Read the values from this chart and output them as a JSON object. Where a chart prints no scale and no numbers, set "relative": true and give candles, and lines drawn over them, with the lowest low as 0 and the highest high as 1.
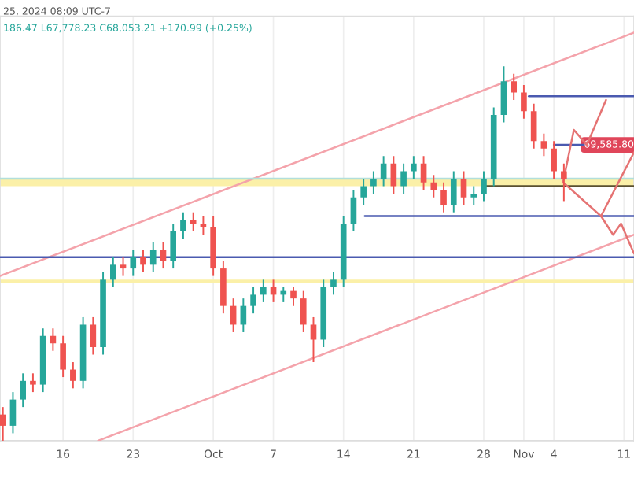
{
  "chart_data": {
    "type": "candlestick",
    "relative": true,
    "x": [
      "2024-09-10",
      "2024-09-11",
      "2024-09-12",
      "2024-09-13",
      "2024-09-14",
      "2024-09-15",
      "2024-09-16",
      "2024-09-17",
      "2024-09-18",
      "2024-09-19",
      "2024-09-20",
      "2024-09-21",
      "2024-09-22",
      "2024-09-23",
      "2024-09-24",
      "2024-09-25",
      "2024-09-26",
      "2024-09-27",
      "2024-09-28",
      "2024-09-29",
      "2024-09-30",
      "2024-10-01",
      "2024-10-02",
      "2024-10-03",
      "2024-10-04",
      "2024-10-05",
      "2024-10-06",
      "2024-10-07",
      "2024-10-08",
      "2024-10-09",
      "2024-10-10",
      "2024-10-11",
      "2024-10-12",
      "2024-10-13",
      "2024-10-14",
      "2024-10-15",
      "2024-10-16",
      "2024-10-17",
      "2024-10-18",
      "2024-10-19",
      "2024-10-20",
      "2024-10-21",
      "2024-10-22",
      "2024-10-23",
      "2024-10-24",
      "2024-10-25",
      "2024-10-26",
      "2024-10-27",
      "2024-10-28",
      "2024-10-29",
      "2024-10-30",
      "2024-10-31",
      "2024-11-01",
      "2024-11-02",
      "2024-11-03",
      "2024-11-04",
      "2024-11-05"
    ],
    "ohlc": [
      [
        0.07,
        0.09,
        0,
        0.04
      ],
      [
        0.04,
        0.13,
        0.02,
        0.11
      ],
      [
        0.11,
        0.18,
        0.09,
        0.16
      ],
      [
        0.16,
        0.18,
        0.13,
        0.15
      ],
      [
        0.15,
        0.3,
        0.13,
        0.28
      ],
      [
        0.28,
        0.3,
        0.24,
        0.26
      ],
      [
        0.26,
        0.28,
        0.17,
        0.19
      ],
      [
        0.19,
        0.21,
        0.14,
        0.16
      ],
      [
        0.16,
        0.33,
        0.14,
        0.31
      ],
      [
        0.31,
        0.33,
        0.23,
        0.25
      ],
      [
        0.25,
        0.45,
        0.23,
        0.43
      ],
      [
        0.43,
        0.49,
        0.41,
        0.47
      ],
      [
        0.47,
        0.49,
        0.44,
        0.46
      ],
      [
        0.46,
        0.51,
        0.44,
        0.49
      ],
      [
        0.49,
        0.51,
        0.45,
        0.47
      ],
      [
        0.47,
        0.53,
        0.45,
        0.51
      ],
      [
        0.51,
        0.53,
        0.46,
        0.48
      ],
      [
        0.48,
        0.58,
        0.46,
        0.56
      ],
      [
        0.56,
        0.61,
        0.54,
        0.59
      ],
      [
        0.59,
        0.61,
        0.56,
        0.58
      ],
      [
        0.58,
        0.6,
        0.55,
        0.57
      ],
      [
        0.57,
        0.6,
        0.44,
        0.46
      ],
      [
        0.46,
        0.48,
        0.34,
        0.36
      ],
      [
        0.36,
        0.38,
        0.29,
        0.31
      ],
      [
        0.31,
        0.38,
        0.29,
        0.36
      ],
      [
        0.36,
        0.41,
        0.34,
        0.39
      ],
      [
        0.39,
        0.43,
        0.37,
        0.41
      ],
      [
        0.41,
        0.43,
        0.37,
        0.39
      ],
      [
        0.39,
        0.41,
        0.37,
        0.4
      ],
      [
        0.4,
        0.41,
        0.36,
        0.38
      ],
      [
        0.38,
        0.4,
        0.29,
        0.31
      ],
      [
        0.31,
        0.33,
        0.21,
        0.27
      ],
      [
        0.27,
        0.43,
        0.25,
        0.41
      ],
      [
        0.41,
        0.45,
        0.39,
        0.43
      ],
      [
        0.43,
        0.6,
        0.41,
        0.58
      ],
      [
        0.58,
        0.67,
        0.56,
        0.65
      ],
      [
        0.65,
        0.7,
        0.63,
        0.68
      ],
      [
        0.68,
        0.72,
        0.66,
        0.7
      ],
      [
        0.7,
        0.76,
        0.68,
        0.74
      ],
      [
        0.74,
        0.76,
        0.66,
        0.68
      ],
      [
        0.68,
        0.74,
        0.66,
        0.72
      ],
      [
        0.72,
        0.76,
        0.7,
        0.74
      ],
      [
        0.74,
        0.76,
        0.67,
        0.69
      ],
      [
        0.69,
        0.71,
        0.65,
        0.67
      ],
      [
        0.67,
        0.69,
        0.61,
        0.63
      ],
      [
        0.63,
        0.72,
        0.61,
        0.7
      ],
      [
        0.7,
        0.72,
        0.63,
        0.65
      ],
      [
        0.65,
        0.68,
        0.63,
        0.66
      ],
      [
        0.66,
        0.72,
        0.64,
        0.7
      ],
      [
        0.7,
        0.89,
        0.68,
        0.87
      ],
      [
        0.87,
        1.0,
        0.85,
        0.96
      ],
      [
        0.96,
        0.98,
        0.91,
        0.93
      ],
      [
        0.93,
        0.95,
        0.86,
        0.88
      ],
      [
        0.88,
        0.9,
        0.78,
        0.8
      ],
      [
        0.8,
        0.82,
        0.76,
        0.78
      ],
      [
        0.78,
        0.8,
        0.7,
        0.72
      ],
      [
        0.72,
        0.74,
        0.64,
        0.7
      ]
    ],
    "series": [
      {
        "type": "line",
        "color": "#f4a3ab",
        "x": [
          "2024-09-09T17:00",
          "2024-11-12T00:00"
        ],
        "values": [
          0.44,
          1.09
        ]
      },
      {
        "type": "line",
        "color": "#f4a3ab",
        "x": [
          "2024-09-19T12:00",
          "2024-11-12T00:00"
        ],
        "values": [
          0,
          0.55
        ]
      },
      {
        "type": "line",
        "color": "#b2dfdb",
        "x": [
          "2024-09-09T17:00",
          "2024-11-12T00:00"
        ],
        "values": [
          0.7,
          0.7
        ]
      },
      {
        "type": "line",
        "color": "#4a5ab0",
        "x": [
          "2024-11-01T12:00",
          "2024-11-12T00:00"
        ],
        "values": [
          0.92,
          0.92
        ]
      },
      {
        "type": "line",
        "color": "#4a5ab0",
        "x": [
          "2024-11-04T00:00",
          "2024-11-07T00:00"
        ],
        "values": [
          0.79,
          0.79
        ]
      },
      {
        "type": "line",
        "color": "#5a5030",
        "x": [
          "2024-10-27T22:00",
          "2024-11-12T00:00"
        ],
        "values": [
          0.68,
          0.68
        ]
      },
      {
        "type": "line",
        "color": "#4a5ab0",
        "x": [
          "2024-10-16T03:00",
          "2024-11-12T00:00"
        ],
        "values": [
          0.6,
          0.6
        ]
      },
      {
        "type": "line",
        "color": "#4a5ab0",
        "x": [
          "2024-09-09T17:00",
          "2024-11-12T00:00"
        ],
        "values": [
          0.49,
          0.49
        ]
      },
      {
        "type": "line",
        "color": "#e57373",
        "x": [
          "2024-11-04T22:00",
          "2024-11-06T00:00",
          "2024-11-07T07:00",
          "2024-11-09T05:00"
        ],
        "values": [
          0.69,
          0.83,
          0.79,
          0.91
        ]
      },
      {
        "type": "line",
        "color": "#e57373",
        "x": [
          "2024-11-04T22:00",
          "2024-11-08T17:00",
          "2024-11-12T00:00"
        ],
        "values": [
          0.69,
          0.6,
          0.77
        ]
      },
      {
        "type": "line",
        "color": "#e57373",
        "x": [
          "2024-11-08T17:00",
          "2024-11-09T22:00",
          "2024-11-10T17:00",
          "2024-11-12T00:00"
        ],
        "values": [
          0.6,
          0.55,
          0.58,
          0.5
        ]
      }
    ],
    "bands": [
      {
        "axis": "y",
        "from": 0.68,
        "to": 0.7,
        "color": "#fbf0a8"
      },
      {
        "axis": "y",
        "from": 0.42,
        "to": 0.43,
        "color": "#fbf0a8"
      }
    ],
    "annotations": [
      "25, 2024 08:09 UTC-7",
      "186.47 L67,778.23 C68,053.21 +170.99 (+0.25%)",
      {
        "text": "69,585.80",
        "x": "2024-11-12T00:00",
        "y": 0.79
      }
    ],
    "xlim": [
      "2024-09-09T17:00",
      "2024-11-12T00:00"
    ],
    "xticks": [
      {
        "value": "2024-09-16",
        "label": "16"
      },
      {
        "value": "2024-09-23",
        "label": "23"
      },
      {
        "value": "2024-10-01",
        "label": "Oct"
      },
      {
        "value": "2024-10-07",
        "label": "7"
      },
      {
        "value": "2024-10-14",
        "label": "14"
      },
      {
        "value": "2024-10-21",
        "label": "21"
      },
      {
        "value": "2024-10-28",
        "label": "28"
      },
      {
        "value": "2024-11-01",
        "label": "Nov"
      },
      {
        "value": "2024-11-04",
        "label": "4"
      },
      {
        "value": "2024-11-11",
        "label": "11"
      }
    ],
    "grid": "x",
    "tick_labels": "x",
    "legend": false
  }
}
